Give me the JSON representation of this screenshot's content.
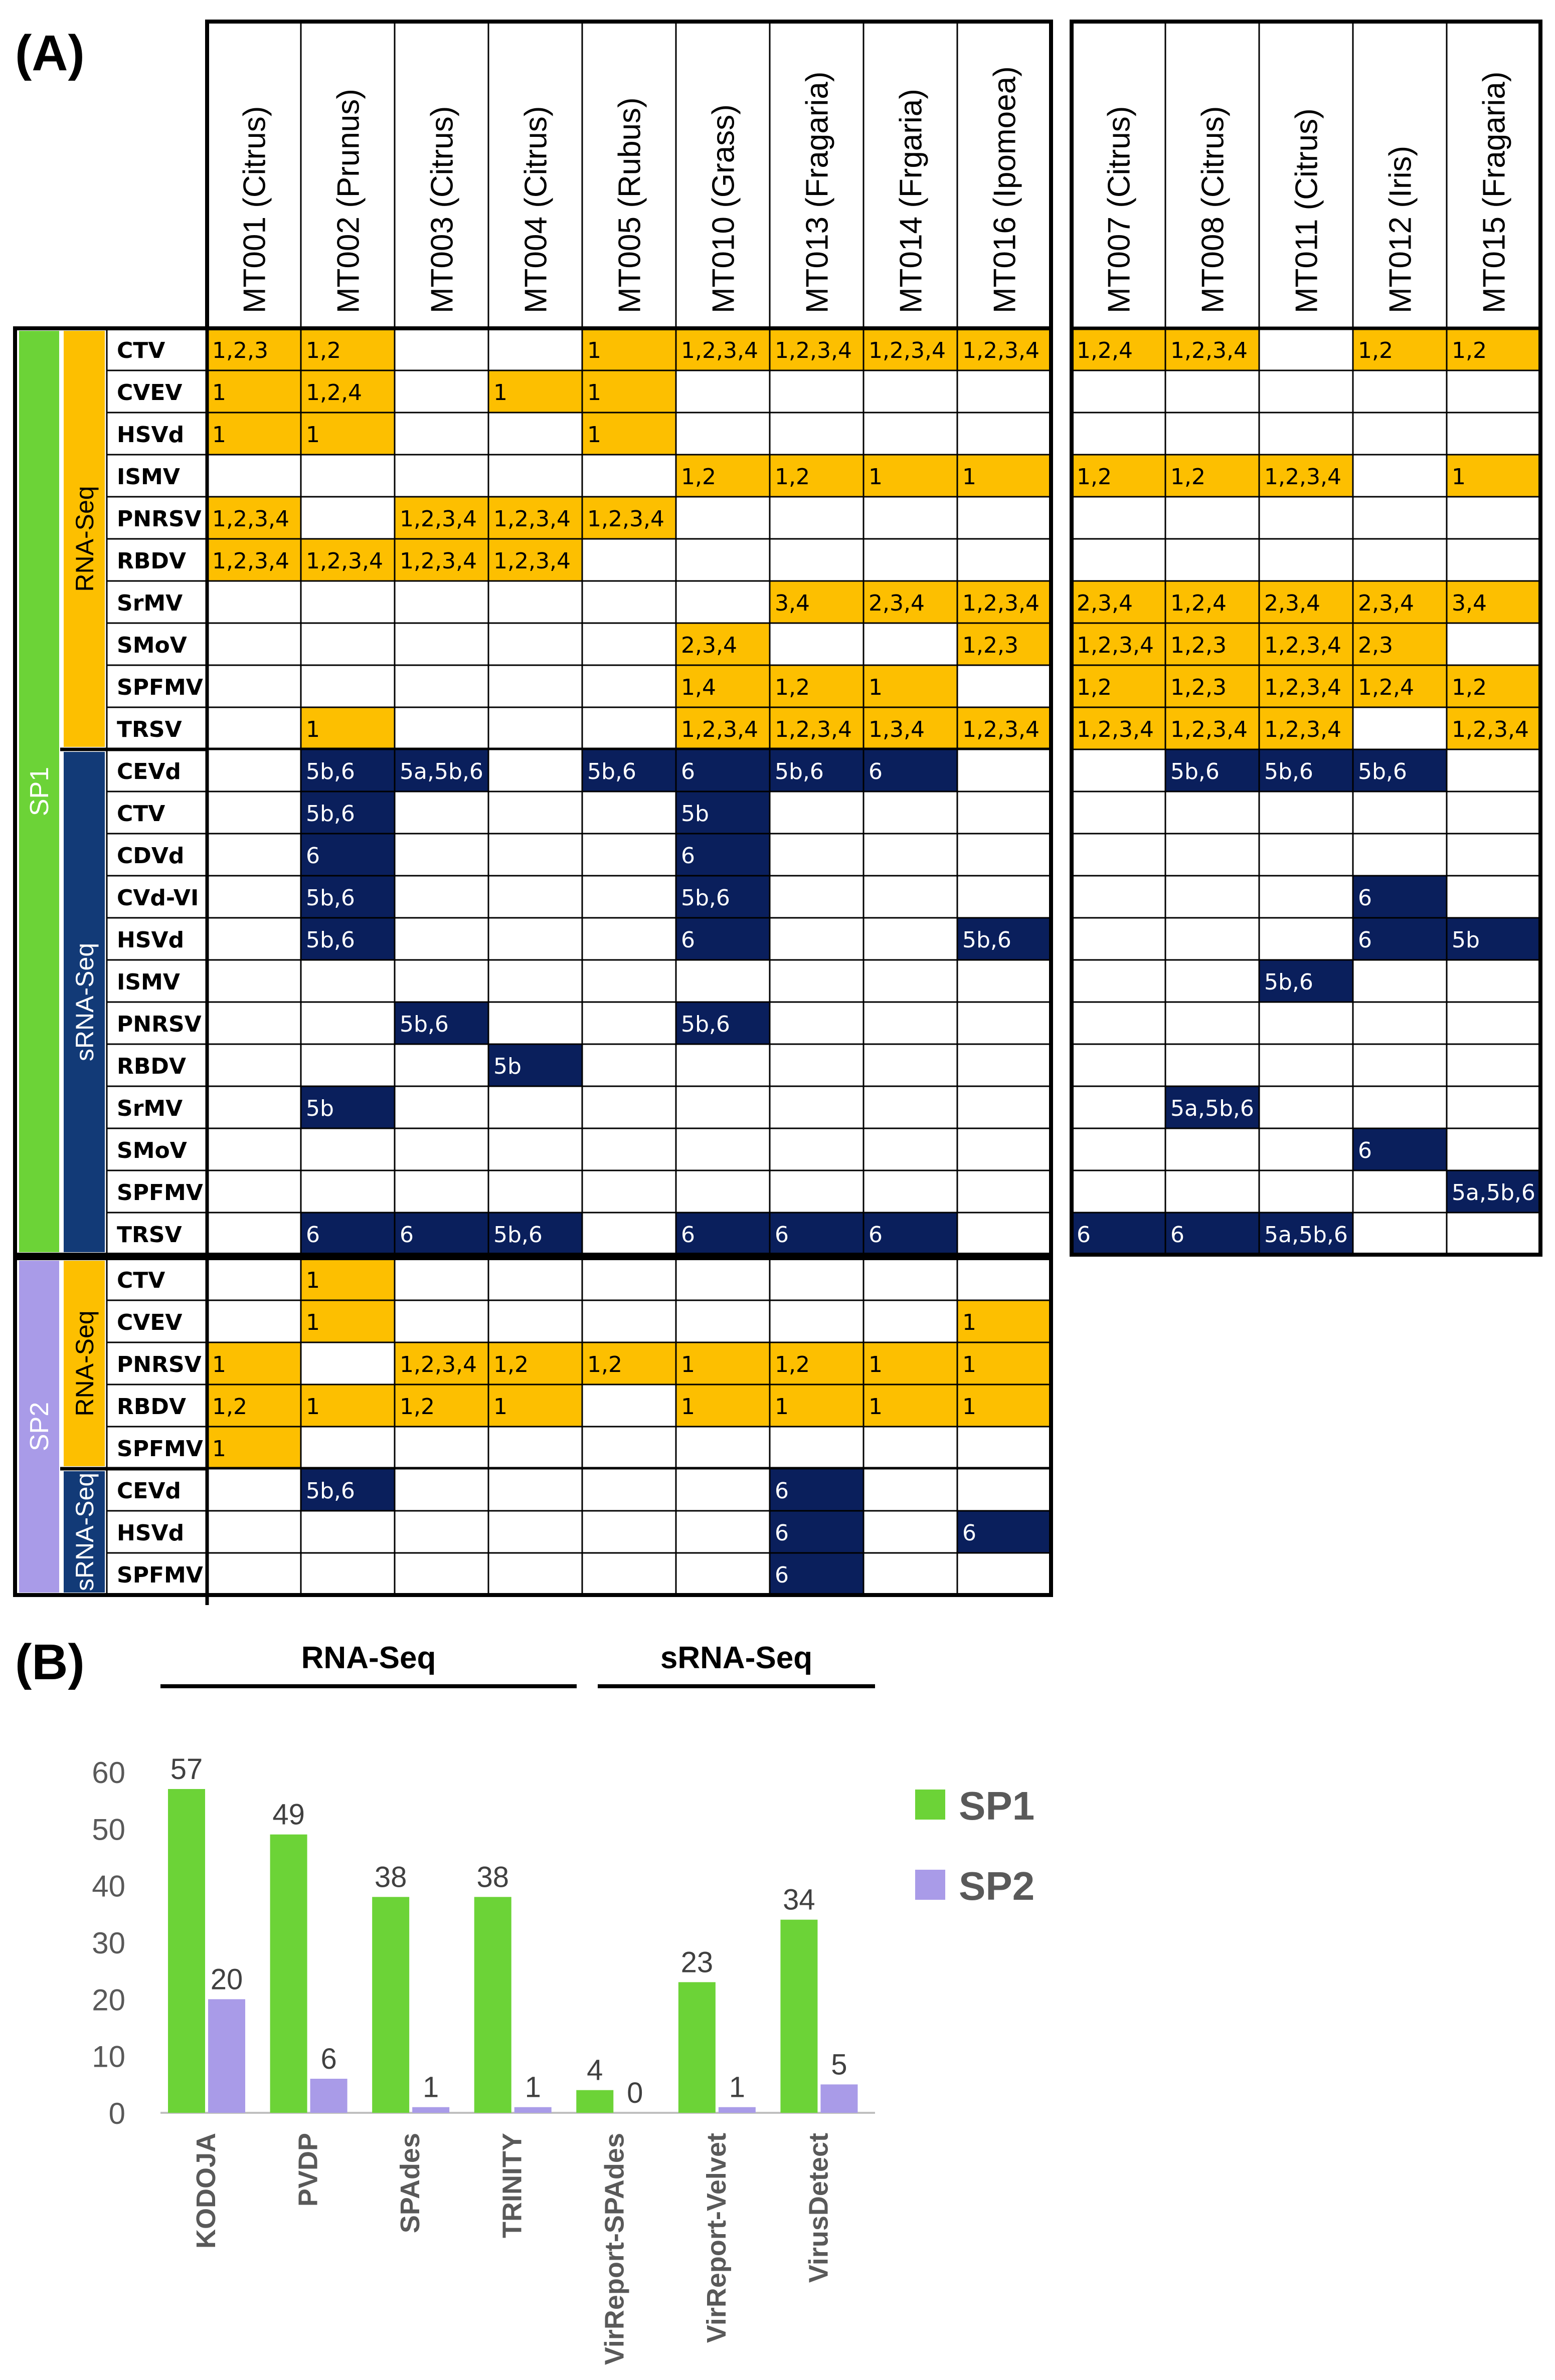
{
  "colors": {
    "rna": "#FDBF00",
    "srna": "#0A1F5C",
    "sp1": "#6CD337",
    "sp2": "#A99BE8",
    "grid": "#000000",
    "axis": "#bfbfbf",
    "axisText": "#595959"
  },
  "panel_a": {
    "label": "(A)",
    "groupA": [
      "MT001 (Citrus)",
      "MT002 (Prunus)",
      "MT003 (Citrus)",
      "MT004 (Citrus)",
      "MT005 (Rubus)",
      "MT010 (Grass)",
      "MT013 (Fragaria)",
      "MT014 (Frgaria)",
      "MT016 (Ipomoea)"
    ],
    "groupB": [
      "MT007 (Citrus)",
      "MT008 (Citrus)",
      "MT011 (Citrus)",
      "MT012 (Iris)",
      "MT015 (Fragaria)"
    ],
    "sections": [
      {
        "name": "SP1",
        "blocks": [
          {
            "name": "RNA-Seq",
            "kind": "rna",
            "rows": [
              {
                "virus": "CTV",
                "a": [
                  "1,2,3",
                  "1,2",
                  "",
                  "",
                  "1",
                  "1,2,3,4",
                  "1,2,3,4",
                  "1,2,3,4",
                  "1,2,3,4"
                ],
                "b": [
                  "1,2,4",
                  "1,2,3,4",
                  "",
                  "1,2",
                  "1,2"
                ]
              },
              {
                "virus": "CVEV",
                "a": [
                  "1",
                  "1,2,4",
                  "",
                  "1",
                  "1",
                  "",
                  "",
                  "",
                  ""
                ],
                "b": [
                  "",
                  "",
                  "",
                  "",
                  ""
                ]
              },
              {
                "virus": "HSVd",
                "a": [
                  "1",
                  "1",
                  "",
                  "",
                  "1",
                  "",
                  "",
                  "",
                  ""
                ],
                "b": [
                  "",
                  "",
                  "",
                  "",
                  ""
                ]
              },
              {
                "virus": "ISMV",
                "a": [
                  "",
                  "",
                  "",
                  "",
                  "",
                  "1,2",
                  "1,2",
                  "1",
                  "1"
                ],
                "b": [
                  "1,2",
                  "1,2",
                  "1,2,3,4",
                  "",
                  "1"
                ]
              },
              {
                "virus": "PNRSV",
                "a": [
                  "1,2,3,4",
                  "",
                  "1,2,3,4",
                  "1,2,3,4",
                  "1,2,3,4",
                  "",
                  "",
                  "",
                  ""
                ],
                "b": [
                  "",
                  "",
                  "",
                  "",
                  ""
                ]
              },
              {
                "virus": "RBDV",
                "a": [
                  "1,2,3,4",
                  "1,2,3,4",
                  "1,2,3,4",
                  "1,2,3,4",
                  "",
                  "",
                  "",
                  "",
                  ""
                ],
                "b": [
                  "",
                  "",
                  "",
                  "",
                  ""
                ]
              },
              {
                "virus": "SrMV",
                "a": [
                  "",
                  "",
                  "",
                  "",
                  "",
                  "",
                  "3,4",
                  "2,3,4",
                  "1,2,3,4"
                ],
                "b": [
                  "2,3,4",
                  "1,2,4",
                  "2,3,4",
                  "2,3,4",
                  "3,4"
                ]
              },
              {
                "virus": "SMoV",
                "a": [
                  "",
                  "",
                  "",
                  "",
                  "",
                  "2,3,4",
                  "",
                  "",
                  "1,2,3"
                ],
                "b": [
                  "1,2,3,4",
                  "1,2,3",
                  "1,2,3,4",
                  "2,3",
                  ""
                ]
              },
              {
                "virus": "SPFMV",
                "a": [
                  "",
                  "",
                  "",
                  "",
                  "",
                  "1,4",
                  "1,2",
                  "1",
                  ""
                ],
                "b": [
                  "1,2",
                  "1,2,3",
                  "1,2,3,4",
                  "1,2,4",
                  "1,2"
                ]
              },
              {
                "virus": "TRSV",
                "a": [
                  "",
                  "1",
                  "",
                  "",
                  "",
                  "1,2,3,4",
                  "1,2,3,4",
                  "1,3,4",
                  "1,2,3,4"
                ],
                "b": [
                  "1,2,3,4",
                  "1,2,3,4",
                  "1,2,3,4",
                  "",
                  "1,2,3,4"
                ]
              }
            ]
          },
          {
            "name": "sRNA-Seq",
            "kind": "srna",
            "rows": [
              {
                "virus": "CEVd",
                "a": [
                  "",
                  "5b,6",
                  "5a,5b,6",
                  "",
                  "5b,6",
                  "6",
                  "5b,6",
                  "6",
                  ""
                ],
                "b": [
                  "",
                  "5b,6",
                  "5b,6",
                  "5b,6",
                  ""
                ]
              },
              {
                "virus": "CTV",
                "a": [
                  "",
                  "5b,6",
                  "",
                  "",
                  "",
                  "5b",
                  "",
                  "",
                  ""
                ],
                "b": [
                  "",
                  "",
                  "",
                  "",
                  ""
                ]
              },
              {
                "virus": "CDVd",
                "a": [
                  "",
                  "6",
                  "",
                  "",
                  "",
                  "6",
                  "",
                  "",
                  ""
                ],
                "b": [
                  "",
                  "",
                  "",
                  "",
                  ""
                ]
              },
              {
                "virus": "CVd-VI",
                "a": [
                  "",
                  "5b,6",
                  "",
                  "",
                  "",
                  "5b,6",
                  "",
                  "",
                  ""
                ],
                "b": [
                  "",
                  "",
                  "",
                  "6",
                  ""
                ]
              },
              {
                "virus": "HSVd",
                "a": [
                  "",
                  "5b,6",
                  "",
                  "",
                  "",
                  "6",
                  "",
                  "",
                  "5b,6"
                ],
                "b": [
                  "",
                  "",
                  "",
                  "6",
                  "5b"
                ]
              },
              {
                "virus": "ISMV",
                "a": [
                  "",
                  "",
                  "",
                  "",
                  "",
                  "",
                  "",
                  "",
                  ""
                ],
                "b": [
                  "",
                  "",
                  "5b,6",
                  "",
                  ""
                ]
              },
              {
                "virus": "PNRSV",
                "a": [
                  "",
                  "",
                  "5b,6",
                  "",
                  "",
                  "5b,6",
                  "",
                  "",
                  ""
                ],
                "b": [
                  "",
                  "",
                  "",
                  "",
                  ""
                ]
              },
              {
                "virus": "RBDV",
                "a": [
                  "",
                  "",
                  "",
                  "5b",
                  "",
                  "",
                  "",
                  "",
                  ""
                ],
                "b": [
                  "",
                  "",
                  "",
                  "",
                  ""
                ]
              },
              {
                "virus": "SrMV",
                "a": [
                  "",
                  "5b",
                  "",
                  "",
                  "",
                  "",
                  "",
                  "",
                  ""
                ],
                "b": [
                  "",
                  "5a,5b,6",
                  "",
                  "",
                  ""
                ]
              },
              {
                "virus": "SMoV",
                "a": [
                  "",
                  "",
                  "",
                  "",
                  "",
                  "",
                  "",
                  "",
                  ""
                ],
                "b": [
                  "",
                  "",
                  "",
                  "6",
                  ""
                ]
              },
              {
                "virus": "SPFMV",
                "a": [
                  "",
                  "",
                  "",
                  "",
                  "",
                  "",
                  "",
                  "",
                  ""
                ],
                "b": [
                  "",
                  "",
                  "",
                  "",
                  "5a,5b,6"
                ]
              },
              {
                "virus": "TRSV",
                "a": [
                  "",
                  "6",
                  "6",
                  "5b,6",
                  "",
                  "6",
                  "6",
                  "6",
                  ""
                ],
                "b": [
                  "6",
                  "6",
                  "5a,5b,6",
                  "",
                  ""
                ]
              }
            ]
          }
        ]
      },
      {
        "name": "SP2",
        "blocks": [
          {
            "name": "RNA-Seq",
            "kind": "rna",
            "rows": [
              {
                "virus": "CTV",
                "a": [
                  "",
                  "1",
                  "",
                  "",
                  "",
                  "",
                  "",
                  "",
                  ""
                ]
              },
              {
                "virus": "CVEV",
                "a": [
                  "",
                  "1",
                  "",
                  "",
                  "",
                  "",
                  "",
                  "",
                  "1"
                ]
              },
              {
                "virus": "PNRSV",
                "a": [
                  "1",
                  "",
                  "1,2,3,4",
                  "1,2",
                  "1,2",
                  "1",
                  "1,2",
                  "1",
                  "1"
                ]
              },
              {
                "virus": "RBDV",
                "a": [
                  "1,2",
                  "1",
                  "1,2",
                  "1",
                  "",
                  "1",
                  "1",
                  "1",
                  "1"
                ]
              },
              {
                "virus": "SPFMV",
                "a": [
                  "1",
                  "",
                  "",
                  "",
                  "",
                  "",
                  "",
                  "",
                  ""
                ]
              }
            ]
          },
          {
            "name": "sRNA-Seq",
            "kind": "srna",
            "rows": [
              {
                "virus": "CEVd",
                "a": [
                  "",
                  "5b,6",
                  "",
                  "",
                  "",
                  "",
                  "6",
                  "",
                  ""
                ]
              },
              {
                "virus": "HSVd",
                "a": [
                  "",
                  "",
                  "",
                  "",
                  "",
                  "",
                  "6",
                  "",
                  "6"
                ]
              },
              {
                "virus": "SPFMV",
                "a": [
                  "",
                  "",
                  "",
                  "",
                  "",
                  "",
                  "6",
                  "",
                  ""
                ]
              }
            ]
          }
        ]
      }
    ]
  },
  "chart_data": {
    "type": "bar",
    "panel_label": "(B)",
    "groups": [
      "RNA-Seq",
      "sRNA-Seq"
    ],
    "categories": [
      "KODOJA",
      "PVDP",
      "SPAdes",
      "TRINITY",
      "VirReport-SPAdes",
      "VirReport-Velvet",
      "VirusDetect"
    ],
    "series": [
      {
        "name": "SP1",
        "values": [
          57,
          49,
          38,
          38,
          4,
          23,
          34
        ]
      },
      {
        "name": "SP2",
        "values": [
          20,
          6,
          1,
          1,
          0,
          1,
          5
        ]
      }
    ],
    "yticks": [
      "0",
      "10",
      "20",
      "30",
      "40",
      "50",
      "60"
    ],
    "ylim": [
      0,
      60
    ],
    "legend": "right"
  }
}
